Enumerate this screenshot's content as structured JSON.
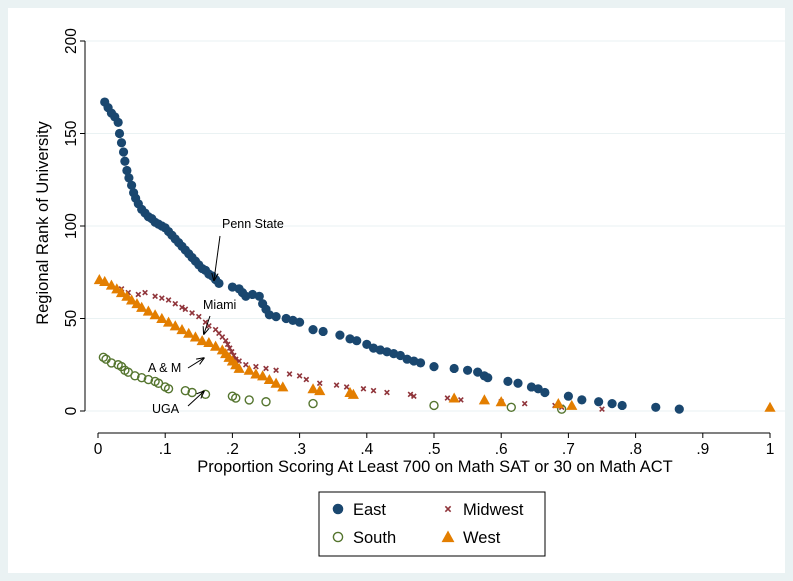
{
  "chart_data": {
    "type": "scatter",
    "xlabel": "Proportion Scoring At Least 700 on Math SAT or 30 on Math ACT",
    "ylabel": "Regional Rank of University",
    "xlim": [
      0,
      1
    ],
    "ylim": [
      0,
      200
    ],
    "xticks": [
      0,
      0.1,
      0.2,
      0.3,
      0.4,
      0.5,
      0.6,
      0.7,
      0.8,
      0.9,
      1
    ],
    "xtick_labels": [
      "0",
      ".1",
      ".2",
      ".3",
      ".4",
      ".5",
      ".6",
      ".7",
      ".8",
      ".9",
      "1"
    ],
    "yticks": [
      0,
      50,
      100,
      150,
      200
    ],
    "ytick_labels": [
      "0",
      "50",
      "100",
      "150",
      "200"
    ],
    "grid": "horizontal",
    "legend_position": "bottom",
    "series": [
      {
        "name": "East",
        "marker": "filled-circle",
        "color": "#1a476f",
        "points": [
          [
            0.01,
            167
          ],
          [
            0.015,
            164
          ],
          [
            0.02,
            161
          ],
          [
            0.025,
            159
          ],
          [
            0.03,
            156
          ],
          [
            0.032,
            150
          ],
          [
            0.035,
            145
          ],
          [
            0.038,
            140
          ],
          [
            0.04,
            135
          ],
          [
            0.043,
            130
          ],
          [
            0.046,
            126
          ],
          [
            0.05,
            122
          ],
          [
            0.053,
            118
          ],
          [
            0.056,
            115
          ],
          [
            0.06,
            112
          ],
          [
            0.065,
            109
          ],
          [
            0.07,
            107
          ],
          [
            0.075,
            105
          ],
          [
            0.08,
            104
          ],
          [
            0.085,
            102
          ],
          [
            0.09,
            101
          ],
          [
            0.095,
            100
          ],
          [
            0.1,
            99
          ],
          [
            0.105,
            97
          ],
          [
            0.11,
            95
          ],
          [
            0.115,
            93
          ],
          [
            0.12,
            91
          ],
          [
            0.125,
            89
          ],
          [
            0.13,
            87
          ],
          [
            0.135,
            85
          ],
          [
            0.14,
            83
          ],
          [
            0.145,
            81
          ],
          [
            0.15,
            79
          ],
          [
            0.155,
            77
          ],
          [
            0.16,
            76
          ],
          [
            0.165,
            74
          ],
          [
            0.17,
            73
          ],
          [
            0.175,
            71
          ],
          [
            0.18,
            69
          ],
          [
            0.2,
            67
          ],
          [
            0.21,
            66
          ],
          [
            0.215,
            64
          ],
          [
            0.22,
            62
          ],
          [
            0.23,
            63
          ],
          [
            0.24,
            62
          ],
          [
            0.245,
            58
          ],
          [
            0.25,
            55
          ],
          [
            0.255,
            52
          ],
          [
            0.265,
            51
          ],
          [
            0.28,
            50
          ],
          [
            0.29,
            49
          ],
          [
            0.3,
            48
          ],
          [
            0.32,
            44
          ],
          [
            0.335,
            43
          ],
          [
            0.36,
            41
          ],
          [
            0.375,
            39
          ],
          [
            0.385,
            38
          ],
          [
            0.4,
            36
          ],
          [
            0.41,
            34
          ],
          [
            0.42,
            33
          ],
          [
            0.43,
            32
          ],
          [
            0.44,
            31
          ],
          [
            0.45,
            30
          ],
          [
            0.46,
            28
          ],
          [
            0.47,
            27
          ],
          [
            0.48,
            26
          ],
          [
            0.5,
            24
          ],
          [
            0.53,
            23
          ],
          [
            0.55,
            22
          ],
          [
            0.565,
            21
          ],
          [
            0.575,
            19
          ],
          [
            0.58,
            18
          ],
          [
            0.61,
            16
          ],
          [
            0.625,
            15
          ],
          [
            0.645,
            13
          ],
          [
            0.655,
            12
          ],
          [
            0.665,
            10
          ],
          [
            0.7,
            8
          ],
          [
            0.72,
            6
          ],
          [
            0.745,
            5
          ],
          [
            0.765,
            4
          ],
          [
            0.78,
            3
          ],
          [
            0.83,
            2
          ],
          [
            0.865,
            1
          ]
        ]
      },
      {
        "name": "Midwest",
        "marker": "x",
        "color": "#90353b",
        "points": [
          [
            0.035,
            66
          ],
          [
            0.045,
            64
          ],
          [
            0.06,
            63
          ],
          [
            0.07,
            64
          ],
          [
            0.085,
            62
          ],
          [
            0.095,
            61
          ],
          [
            0.105,
            60
          ],
          [
            0.115,
            58
          ],
          [
            0.125,
            56
          ],
          [
            0.13,
            55
          ],
          [
            0.14,
            53
          ],
          [
            0.15,
            51
          ],
          [
            0.16,
            48
          ],
          [
            0.165,
            46
          ],
          [
            0.175,
            44
          ],
          [
            0.18,
            42
          ],
          [
            0.185,
            40
          ],
          [
            0.19,
            38
          ],
          [
            0.193,
            36
          ],
          [
            0.196,
            34
          ],
          [
            0.199,
            32
          ],
          [
            0.202,
            30
          ],
          [
            0.205,
            28
          ],
          [
            0.21,
            27
          ],
          [
            0.22,
            25
          ],
          [
            0.235,
            24
          ],
          [
            0.25,
            23
          ],
          [
            0.265,
            22
          ],
          [
            0.285,
            20
          ],
          [
            0.3,
            19
          ],
          [
            0.31,
            17
          ],
          [
            0.33,
            15
          ],
          [
            0.355,
            14
          ],
          [
            0.37,
            13
          ],
          [
            0.395,
            12
          ],
          [
            0.41,
            11
          ],
          [
            0.43,
            10
          ],
          [
            0.465,
            9
          ],
          [
            0.47,
            8
          ],
          [
            0.52,
            7
          ],
          [
            0.54,
            6
          ],
          [
            0.6,
            5
          ],
          [
            0.635,
            4
          ],
          [
            0.68,
            3
          ],
          [
            0.69,
            2
          ],
          [
            0.75,
            1
          ]
        ]
      },
      {
        "name": "South",
        "marker": "hollow-circle",
        "color": "#55752f",
        "points": [
          [
            0.008,
            29
          ],
          [
            0.012,
            28
          ],
          [
            0.02,
            26
          ],
          [
            0.03,
            25
          ],
          [
            0.035,
            24
          ],
          [
            0.04,
            22
          ],
          [
            0.045,
            21
          ],
          [
            0.055,
            19
          ],
          [
            0.065,
            18
          ],
          [
            0.075,
            17
          ],
          [
            0.085,
            16
          ],
          [
            0.09,
            15
          ],
          [
            0.1,
            13
          ],
          [
            0.105,
            12
          ],
          [
            0.13,
            11
          ],
          [
            0.14,
            10
          ],
          [
            0.16,
            9
          ],
          [
            0.2,
            8
          ],
          [
            0.205,
            7
          ],
          [
            0.225,
            6
          ],
          [
            0.25,
            5
          ],
          [
            0.32,
            4
          ],
          [
            0.5,
            3
          ],
          [
            0.615,
            2
          ],
          [
            0.69,
            1
          ]
        ]
      },
      {
        "name": "West",
        "marker": "filled-triangle",
        "color": "#e37e00",
        "points": [
          [
            0.002,
            71
          ],
          [
            0.01,
            70
          ],
          [
            0.02,
            68
          ],
          [
            0.028,
            66
          ],
          [
            0.035,
            64
          ],
          [
            0.043,
            62
          ],
          [
            0.05,
            60
          ],
          [
            0.058,
            58
          ],
          [
            0.065,
            56
          ],
          [
            0.075,
            54
          ],
          [
            0.085,
            52
          ],
          [
            0.095,
            50
          ],
          [
            0.105,
            48
          ],
          [
            0.115,
            46
          ],
          [
            0.125,
            44
          ],
          [
            0.135,
            42
          ],
          [
            0.145,
            40
          ],
          [
            0.155,
            38
          ],
          [
            0.165,
            37
          ],
          [
            0.175,
            35
          ],
          [
            0.185,
            33
          ],
          [
            0.19,
            31
          ],
          [
            0.195,
            29
          ],
          [
            0.2,
            27
          ],
          [
            0.205,
            25
          ],
          [
            0.21,
            23
          ],
          [
            0.225,
            22
          ],
          [
            0.235,
            20
          ],
          [
            0.245,
            19
          ],
          [
            0.255,
            17
          ],
          [
            0.265,
            15
          ],
          [
            0.275,
            13
          ],
          [
            0.32,
            12
          ],
          [
            0.33,
            11
          ],
          [
            0.375,
            10
          ],
          [
            0.38,
            9
          ],
          [
            0.53,
            7
          ],
          [
            0.575,
            6
          ],
          [
            0.6,
            5
          ],
          [
            0.685,
            4
          ],
          [
            0.705,
            3
          ],
          [
            1.0,
            2
          ]
        ]
      }
    ],
    "annotations": [
      {
        "text": "Penn State",
        "x": 0.18,
        "y": 69
      },
      {
        "text": "Miami",
        "x": 0.165,
        "y": 40
      },
      {
        "text": "A & M",
        "x": 0.165,
        "y": 27
      },
      {
        "text": "UGA",
        "x": 0.165,
        "y": 9
      }
    ]
  }
}
